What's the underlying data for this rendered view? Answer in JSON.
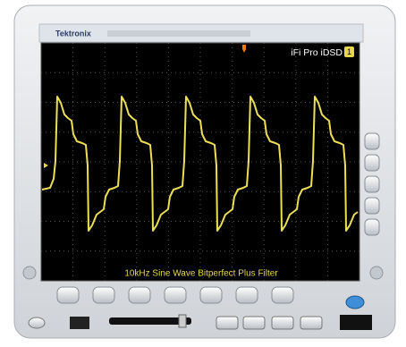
{
  "header": {
    "brand": "Tektronix"
  },
  "screen": {
    "label": "iFi Pro iDSD",
    "channel": "1",
    "caption": "10kHz Sine Wave Bitperfect Plus Filter"
  }
}
